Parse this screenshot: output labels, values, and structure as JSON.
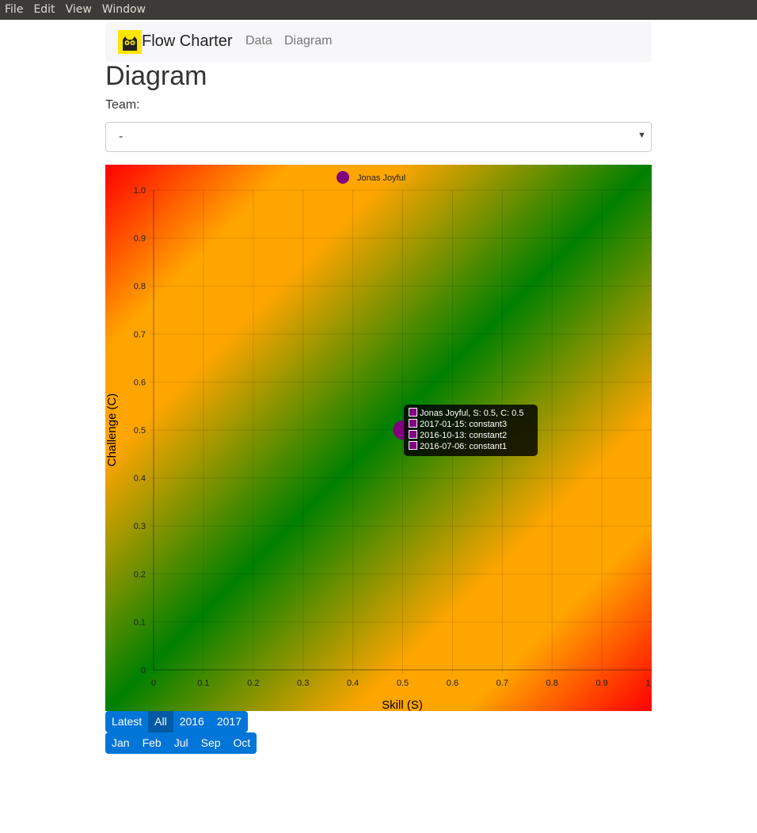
{
  "menubar": {
    "items": [
      "File",
      "Edit",
      "View",
      "Window"
    ]
  },
  "navbar": {
    "brand": "Flow Charter",
    "links": [
      "Data",
      "Diagram"
    ],
    "logo_icon": "owl-logo-icon"
  },
  "page": {
    "title": "Diagram",
    "team_label": "Team:",
    "team_select_value": "-"
  },
  "chart_data": {
    "type": "scatter",
    "xlabel": "Skill (S)",
    "ylabel": "Challenge (C)",
    "xlim": [
      0,
      1.0
    ],
    "ylim": [
      0,
      1.0
    ],
    "x_ticks": [
      "0",
      "0.1",
      "0.2",
      "0.3",
      "0.4",
      "0.5",
      "0.6",
      "0.7",
      "0.8",
      "0.9",
      "1.0"
    ],
    "y_ticks": [
      "0",
      "0.1",
      "0.2",
      "0.3",
      "0.4",
      "0.5",
      "0.6",
      "0.7",
      "0.8",
      "0.9",
      "1.0"
    ],
    "grid": true,
    "legend_position": "top",
    "series": [
      {
        "name": "Jonas Joyful",
        "color": "#800080",
        "points": [
          {
            "x": 0.5,
            "y": 0.5
          }
        ]
      }
    ],
    "background_gradient": {
      "edge_color": "#ff0000",
      "mid_color": "#ffa500",
      "diagonal_color": "#008000"
    }
  },
  "tooltip": {
    "rows": [
      "Jonas Joyful, S: 0.5, C: 0.5",
      "2017-01-15: constant3",
      "2016-10-13: constant2",
      "2016-07-06: constant1"
    ]
  },
  "period_buttons": {
    "years": [
      "Latest",
      "All",
      "2016",
      "2017"
    ],
    "active_year": "All",
    "months": [
      "Jan",
      "Feb",
      "Jul",
      "Sep",
      "Oct"
    ]
  }
}
